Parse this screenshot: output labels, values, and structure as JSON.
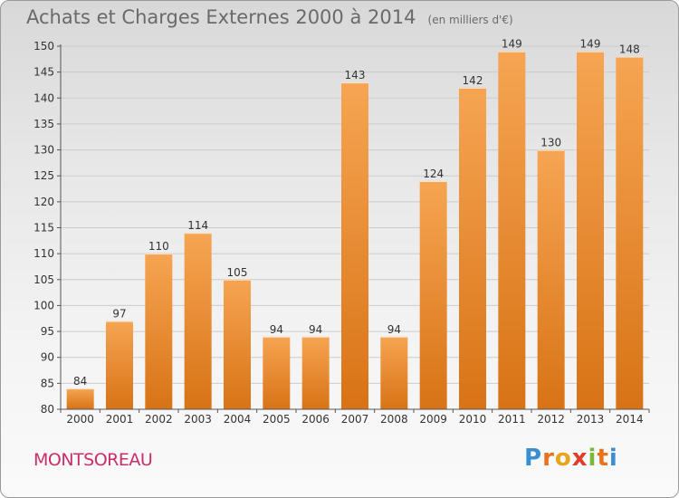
{
  "title": "Achats et Charges Externes 2000 à 2014",
  "unit": "(en milliers d'€)",
  "town": "MONTSOREAU",
  "logo": {
    "letters": [
      "P",
      "r",
      "o",
      "x",
      "i",
      "t",
      "i"
    ],
    "colors": [
      "#3a8fd0",
      "#e8731c",
      "#e8a51c",
      "#e13c2b",
      "#7cb83a",
      "#e8731c",
      "#3a8fd0"
    ]
  },
  "colors": {
    "bar_light": "#f6a552",
    "bar_dark": "#d87316",
    "axis": "#555555",
    "grid": "#cccccc"
  },
  "chart_data": {
    "type": "bar",
    "categories": [
      "2000",
      "2001",
      "2002",
      "2003",
      "2004",
      "2005",
      "2006",
      "2007",
      "2008",
      "2009",
      "2010",
      "2011",
      "2012",
      "2013",
      "2014"
    ],
    "values": [
      84,
      97,
      110,
      114,
      105,
      94,
      94,
      143,
      94,
      124,
      142,
      149,
      130,
      149,
      148
    ],
    "ylim": [
      80,
      150
    ],
    "yticks": [
      80,
      85,
      90,
      95,
      100,
      105,
      110,
      115,
      120,
      125,
      130,
      135,
      140,
      145,
      150
    ],
    "title": "Achats et Charges Externes 2000 à 2014",
    "xlabel": "",
    "ylabel": "",
    "grid": true
  }
}
